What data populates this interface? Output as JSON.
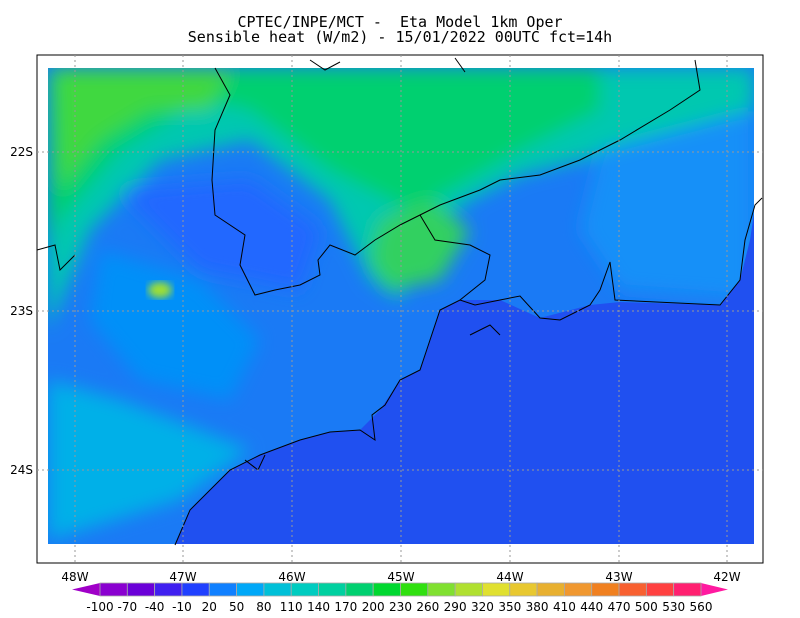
{
  "header": {
    "line1": "CPTEC/INPE/MCT -  Eta Model 1km Oper",
    "line2": "Sensible heat (W/m2) - 15/01/2022 00UTC fct=14h"
  },
  "map": {
    "lat_labels": [
      "22S",
      "23S",
      "24S"
    ],
    "lon_labels": [
      "48W",
      "47W",
      "46W",
      "45W",
      "44W",
      "43W",
      "42W"
    ],
    "gridlines": "dotted",
    "ocean_color": "#2050f0"
  },
  "colorbar": {
    "levels": [
      "-100",
      "-70",
      "-40",
      "-10",
      "20",
      "50",
      "80",
      "110",
      "140",
      "170",
      "200",
      "230",
      "260",
      "290",
      "320",
      "350",
      "380",
      "410",
      "440",
      "470",
      "500",
      "530",
      "560"
    ],
    "colors": [
      "#8a00d0",
      "#6a00d8",
      "#4020f0",
      "#2040ff",
      "#1080ff",
      "#00a8f8",
      "#00c0d8",
      "#00ccc0",
      "#00d0a0",
      "#00d070",
      "#00d830",
      "#30e010",
      "#80e030",
      "#b0e030",
      "#e0e030",
      "#e8c830",
      "#e8b030",
      "#f09830",
      "#f08020",
      "#f86030",
      "#ff4040",
      "#ff2070"
    ],
    "under_color": "#a000c8",
    "over_color": "#ff1aa0"
  }
}
